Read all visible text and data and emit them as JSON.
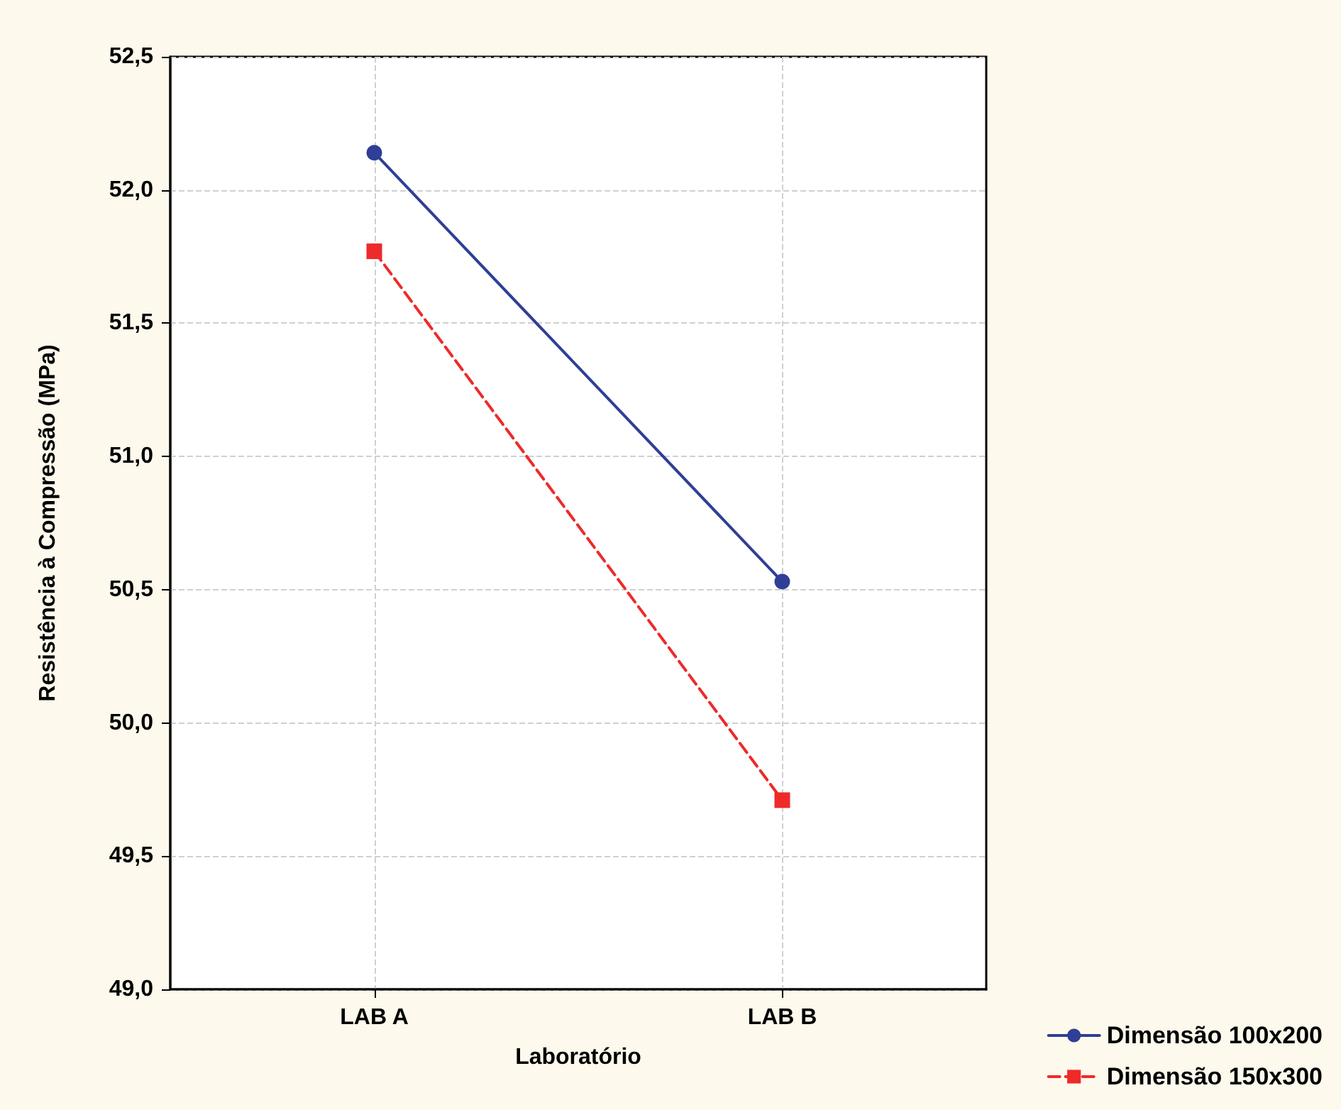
{
  "chart_data": {
    "type": "line",
    "xlabel": "Laboratório",
    "ylabel": "Resistência à Compressão (MPa)",
    "categories": [
      "LAB A",
      "LAB B"
    ],
    "series": [
      {
        "name": "Dimensão 100x200",
        "color": "#2e3f95",
        "values": [
          52.14,
          50.53
        ],
        "marker": "circle",
        "line_style": "solid"
      },
      {
        "name": "Dimensão 150x300",
        "color": "#ee2a2a",
        "values": [
          51.77,
          49.71
        ],
        "marker": "square",
        "line_style": "dashed"
      }
    ],
    "ylim": [
      49.0,
      52.5
    ],
    "yticks": [
      {
        "value": 49.0,
        "label": "49,0"
      },
      {
        "value": 49.5,
        "label": "49,5"
      },
      {
        "value": 50.0,
        "label": "50,0"
      },
      {
        "value": 50.5,
        "label": "50,5"
      },
      {
        "value": 51.0,
        "label": "51,0"
      },
      {
        "value": 51.5,
        "label": "51,5"
      },
      {
        "value": 52.0,
        "label": "52,0"
      },
      {
        "value": 52.5,
        "label": "52,5"
      }
    ],
    "grid": true,
    "legend": "bottom right"
  }
}
